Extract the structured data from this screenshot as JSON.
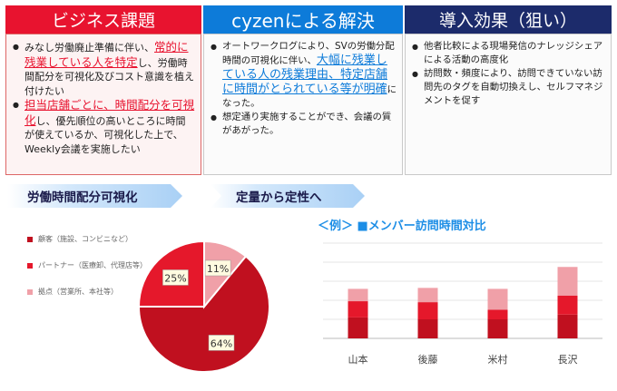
{
  "table": {
    "columns": [
      {
        "header": "ビジネス課題",
        "bullets": [
          [
            "みなし労働廃止準備に伴い、",
            "常的に残業している人を特定",
            "し、労働時間配分を可視化及びコスト意識を植え付けたい"
          ],
          [
            "担当店舗ごとに、時間配分を可視化",
            "し、優先順位の高いところに時間が使えているか、可視化した上で、Weekly会議を実施したい"
          ]
        ],
        "highlight_first_prefix": "定"
      },
      {
        "header": "cyzenによる解決",
        "bullets": [
          [
            "オートワークログにより、SVの労働分配時間の可視化に伴い、",
            "大幅に残業している人の残業理由、特定店舗に時間がとられている等が明確",
            "になった。"
          ],
          [
            "想定通り実施することができ、会議の質があがった。"
          ]
        ]
      },
      {
        "header": "導入効果（狙い）",
        "bullets": [
          [
            "他者比較による現場発信のナレッジシェアによる活動の高度化"
          ],
          [
            "訪問数・頻度により、訪問できていない訪問先のタグを自動切換えし、セルフマネジメントを促す"
          ]
        ]
      }
    ]
  },
  "banners": {
    "left": "労働時間配分可視化",
    "right": "定量から定性へ"
  },
  "colors": {
    "red": "#e8132f",
    "blue": "#0d7bd9",
    "navy": "#1c2b6b",
    "pie_dark": "#c0101f",
    "pie_mid": "#e5182b",
    "pie_light": "#f0a0a8"
  },
  "chart_data": [
    {
      "type": "pie",
      "title": "",
      "legend": [
        "顧客（施設、コンビニなど）",
        "パートナー（医療卸、代理店等）",
        "拠点（営業所、本社等）"
      ],
      "values": [
        64,
        25,
        11
      ],
      "labels": [
        "64%",
        "25%",
        "11%"
      ],
      "legend_placement": "left"
    },
    {
      "type": "bar",
      "stacked": true,
      "title": "＜例＞ ■メンバー訪問時間対比",
      "categories": [
        "山本",
        "後藤",
        "米村",
        "長沢"
      ],
      "series": [
        {
          "values": [
            22,
            20,
            20,
            25
          ]
        },
        {
          "values": [
            17,
            18,
            10,
            20
          ]
        },
        {
          "values": [
            13,
            15,
            22,
            30
          ]
        }
      ],
      "ylim": [
        0,
        100
      ],
      "grid": true
    }
  ]
}
